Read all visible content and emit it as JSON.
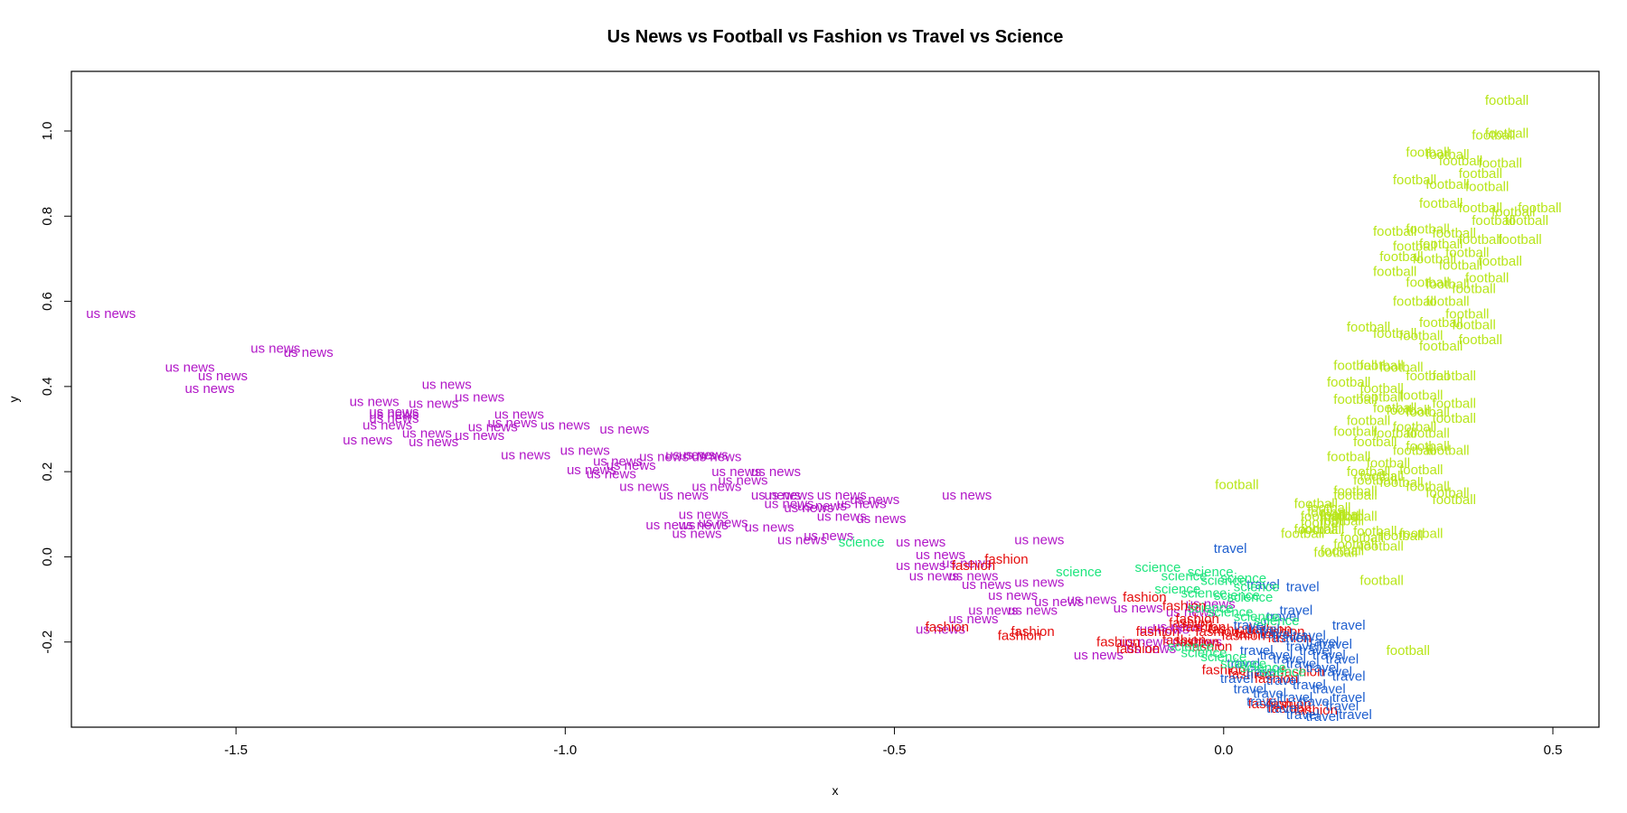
{
  "chart_data": {
    "type": "scatter",
    "title": "Us News vs Football vs Fashion vs Travel vs Science",
    "xlabel": "x",
    "ylabel": "y",
    "xlim": [
      -1.75,
      0.57
    ],
    "ylim": [
      -0.4,
      1.14
    ],
    "xticks": [
      -1.5,
      -1.0,
      -0.5,
      0.0,
      0.5
    ],
    "xtick_labels": [
      "-1.5",
      "-1.0",
      "-0.5",
      "0.0",
      "0.5"
    ],
    "yticks": [
      -0.2,
      0.0,
      0.2,
      0.4,
      0.6,
      0.8,
      1.0
    ],
    "ytick_labels": [
      "-0.2",
      "0.0",
      "0.2",
      "0.4",
      "0.6",
      "0.8",
      "1.0"
    ],
    "grid": false,
    "legend": "none",
    "colors": {
      "us news": "#b117c7",
      "football": "#b8e619",
      "fashion": "#e50d0d",
      "travel": "#1f5fcf",
      "science": "#1ee57d"
    },
    "series": [
      {
        "label": "us news",
        "x": [
          -1.69,
          -1.44,
          -1.39,
          -1.57,
          -1.52,
          -1.54,
          -1.26,
          -1.2,
          -1.18,
          -1.13,
          -1.29,
          -1.26,
          -1.26,
          -1.27,
          -1.21,
          -1.3,
          -1.2,
          -1.11,
          -1.13,
          -1.07,
          -1.08,
          -1.06,
          -1.0,
          -0.91,
          -0.97,
          -0.92,
          -0.9,
          -0.85,
          -0.81,
          -0.79,
          -0.77,
          -0.74,
          -0.68,
          -0.96,
          -0.93,
          -0.88,
          -0.73,
          -0.77,
          -0.66,
          -0.82,
          -0.84,
          -0.68,
          -0.66,
          -0.61,
          -0.58,
          -0.53,
          -0.52,
          -0.79,
          -0.8,
          -0.79,
          -0.76,
          -0.69,
          -0.63,
          -0.58,
          -0.55,
          -0.64,
          -0.6,
          -0.46,
          -0.39,
          -0.28,
          -0.43,
          -0.39,
          -0.46,
          -0.44,
          -0.38,
          -0.36,
          -0.28,
          -0.32,
          -0.25,
          -0.2,
          -0.35,
          -0.29,
          -0.38,
          -0.43,
          -0.19,
          -0.13,
          -0.12,
          -0.11,
          -0.02,
          -0.05,
          -0.07,
          -0.09,
          -0.04
        ],
        "y": [
          0.572,
          0.49,
          0.48,
          0.445,
          0.425,
          0.395,
          0.34,
          0.36,
          0.405,
          0.375,
          0.365,
          0.335,
          0.325,
          0.31,
          0.29,
          0.275,
          0.27,
          0.305,
          0.285,
          0.335,
          0.315,
          0.24,
          0.31,
          0.3,
          0.25,
          0.225,
          0.215,
          0.235,
          0.24,
          0.24,
          0.235,
          0.2,
          0.2,
          0.205,
          0.195,
          0.165,
          0.18,
          0.165,
          0.145,
          0.145,
          0.075,
          0.145,
          0.125,
          0.12,
          0.145,
          0.135,
          0.09,
          0.075,
          0.055,
          0.1,
          0.08,
          0.07,
          0.115,
          0.095,
          0.125,
          0.04,
          0.05,
          0.035,
          0.145,
          0.04,
          0.005,
          -0.015,
          -0.02,
          -0.045,
          -0.045,
          -0.065,
          -0.06,
          -0.09,
          -0.105,
          -0.1,
          -0.125,
          -0.125,
          -0.145,
          -0.17,
          -0.23,
          -0.12,
          -0.2,
          -0.215,
          -0.11,
          -0.13,
          -0.165,
          -0.17,
          -0.2
        ]
      },
      {
        "label": "football",
        "x": [
          0.43,
          0.43,
          0.41,
          0.31,
          0.34,
          0.36,
          0.42,
          0.39,
          0.29,
          0.34,
          0.4,
          0.44,
          0.48,
          0.46,
          0.33,
          0.39,
          0.41,
          0.26,
          0.31,
          0.35,
          0.39,
          0.29,
          0.33,
          0.37,
          0.42,
          0.45,
          0.27,
          0.32,
          0.36,
          0.4,
          0.26,
          0.31,
          0.34,
          0.38,
          0.29,
          0.34,
          0.37,
          0.33,
          0.38,
          0.22,
          0.26,
          0.3,
          0.33,
          0.39,
          0.2,
          0.24,
          0.27,
          0.31,
          0.35,
          0.19,
          0.24,
          0.3,
          0.35,
          0.2,
          0.24,
          0.28,
          0.26,
          0.31,
          0.35,
          0.22,
          0.29,
          0.31,
          0.2,
          0.26,
          0.23,
          0.31,
          0.29,
          0.34,
          0.19,
          0.25,
          0.3,
          0.22,
          0.24,
          0.27,
          0.31,
          0.34,
          0.35,
          0.2,
          0.14,
          0.16,
          0.2,
          0.18,
          0.15,
          0.14,
          0.23,
          0.27,
          0.21,
          0.24,
          0.2,
          0.17,
          0.18,
          0.02,
          0.23,
          0.2,
          0.18,
          0.15,
          0.15,
          0.12,
          0.16,
          0.18,
          0.3,
          0.24,
          0.28
        ],
        "y": [
          1.072,
          0.995,
          0.99,
          0.95,
          0.945,
          0.93,
          0.925,
          0.9,
          0.885,
          0.875,
          0.87,
          0.81,
          0.82,
          0.79,
          0.83,
          0.82,
          0.79,
          0.765,
          0.77,
          0.76,
          0.745,
          0.73,
          0.735,
          0.715,
          0.695,
          0.745,
          0.705,
          0.7,
          0.685,
          0.655,
          0.67,
          0.645,
          0.64,
          0.63,
          0.6,
          0.6,
          0.57,
          0.55,
          0.545,
          0.54,
          0.525,
          0.52,
          0.495,
          0.51,
          0.45,
          0.45,
          0.445,
          0.425,
          0.425,
          0.41,
          0.395,
          0.38,
          0.36,
          0.37,
          0.375,
          0.345,
          0.35,
          0.34,
          0.325,
          0.32,
          0.305,
          0.29,
          0.295,
          0.29,
          0.27,
          0.26,
          0.25,
          0.25,
          0.235,
          0.22,
          0.205,
          0.2,
          0.19,
          0.175,
          0.165,
          0.15,
          0.135,
          0.145,
          0.125,
          0.115,
          0.095,
          0.085,
          0.095,
          0.065,
          0.06,
          0.05,
          0.045,
          0.025,
          0.03,
          0.01,
          0.015,
          0.17,
          0.18,
          0.155,
          0.1,
          0.08,
          0.065,
          0.055,
          0.105,
          0.095,
          0.055,
          -0.055,
          -0.22
        ]
      },
      {
        "label": "fashion",
        "x": [
          -0.33,
          -0.38,
          -0.42,
          -0.31,
          -0.29,
          -0.12,
          -0.06,
          -0.04,
          -0.1,
          -0.05,
          -0.03,
          -0.01,
          0.01,
          0.03,
          0.05,
          0.07,
          0.09,
          0.1,
          -0.06,
          -0.04,
          -0.02,
          -0.16,
          -0.13,
          0.0,
          0.04,
          0.08,
          0.12,
          0.07,
          0.1,
          0.1,
          0.14
        ],
        "y": [
          -0.005,
          -0.02,
          -0.165,
          -0.185,
          -0.175,
          -0.095,
          -0.115,
          -0.145,
          -0.175,
          -0.155,
          -0.165,
          -0.175,
          -0.17,
          -0.185,
          -0.18,
          -0.17,
          -0.175,
          -0.19,
          -0.195,
          -0.2,
          -0.21,
          -0.2,
          -0.215,
          -0.265,
          -0.275,
          -0.285,
          -0.27,
          -0.345,
          -0.345,
          -0.355,
          -0.36
        ]
      },
      {
        "label": "travel",
        "x": [
          0.01,
          0.06,
          0.12,
          0.11,
          0.09,
          0.04,
          0.06,
          0.08,
          0.1,
          0.13,
          0.15,
          0.17,
          0.19,
          0.12,
          0.14,
          0.16,
          0.18,
          0.05,
          0.08,
          0.1,
          0.12,
          0.15,
          0.17,
          0.19,
          0.03,
          0.06,
          0.09,
          0.13,
          0.16,
          0.19,
          0.04,
          0.07,
          0.11,
          0.14,
          0.18,
          0.06,
          0.09,
          0.12,
          0.15,
          0.02,
          0.2
        ],
        "y": [
          0.02,
          -0.065,
          -0.07,
          -0.125,
          -0.14,
          -0.16,
          -0.17,
          -0.18,
          -0.19,
          -0.185,
          -0.2,
          -0.205,
          -0.16,
          -0.21,
          -0.22,
          -0.23,
          -0.24,
          -0.22,
          -0.23,
          -0.24,
          -0.25,
          -0.26,
          -0.27,
          -0.28,
          -0.25,
          -0.27,
          -0.29,
          -0.3,
          -0.31,
          -0.33,
          -0.31,
          -0.32,
          -0.33,
          -0.34,
          -0.35,
          -0.34,
          -0.355,
          -0.37,
          -0.375,
          -0.285,
          -0.37
        ]
      },
      {
        "label": "science",
        "x": [
          -0.55,
          -0.22,
          -0.1,
          -0.06,
          -0.02,
          0.0,
          0.03,
          0.05,
          -0.07,
          -0.03,
          0.02,
          0.04,
          -0.02,
          0.01,
          0.05,
          0.08,
          -0.05,
          -0.03,
          0.0,
          0.03,
          0.06,
          0.09
        ],
        "y": [
          0.035,
          -0.035,
          -0.025,
          -0.045,
          -0.035,
          -0.055,
          -0.05,
          -0.07,
          -0.075,
          -0.085,
          -0.09,
          -0.095,
          -0.12,
          -0.13,
          -0.14,
          -0.15,
          -0.21,
          -0.225,
          -0.235,
          -0.25,
          -0.26,
          -0.27
        ]
      }
    ]
  }
}
